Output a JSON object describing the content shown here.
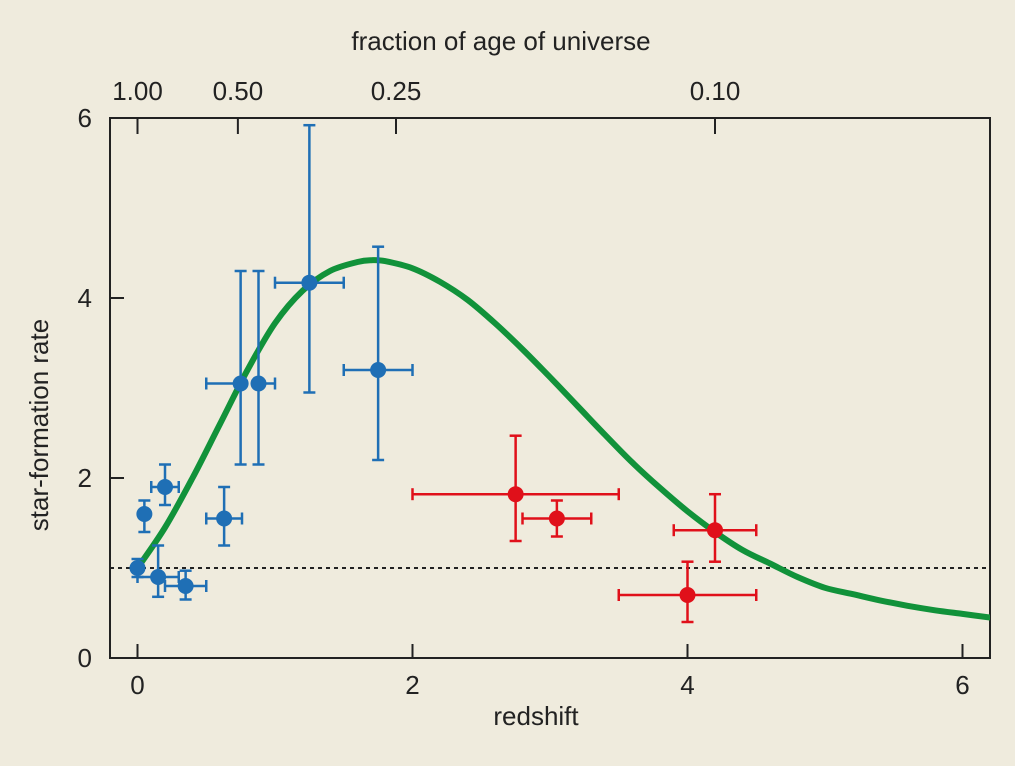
{
  "chart_data": {
    "type": "scatter",
    "xlabel": "redshift",
    "ylabel": "star-formation rate",
    "top_axis_label": "fraction of age of universe",
    "xlim": [
      -0.2,
      6.2
    ],
    "ylim": [
      0,
      6
    ],
    "x_ticks": [
      0,
      2,
      4,
      6
    ],
    "y_ticks": [
      0,
      2,
      4,
      6
    ],
    "top_ticks": [
      {
        "label": "1.00",
        "z": 0.0
      },
      {
        "label": "0.50",
        "z": 0.73
      },
      {
        "label": "0.25",
        "z": 1.88
      },
      {
        "label": "0.10",
        "z": 4.2
      }
    ],
    "reference_line_y": 1.0,
    "colors": {
      "blue": "#1f6fb5",
      "red": "#e0101a",
      "curve": "#11923a",
      "background": "#efebdd"
    },
    "series": [
      {
        "color": "blue",
        "points": [
          {
            "x": 0.0,
            "y": 1.0,
            "xerr": [
              0.0,
              0.0
            ],
            "yerr": [
              0.1,
              0.1
            ]
          },
          {
            "x": 0.05,
            "y": 1.6,
            "xerr": [
              0.0,
              0.0
            ],
            "yerr": [
              0.2,
              0.15
            ]
          },
          {
            "x": 0.15,
            "y": 0.9,
            "xerr": [
              0.15,
              0.15
            ],
            "yerr": [
              0.22,
              0.35
            ]
          },
          {
            "x": 0.2,
            "y": 1.9,
            "xerr": [
              0.1,
              0.1
            ],
            "yerr": [
              0.2,
              0.25
            ]
          },
          {
            "x": 0.35,
            "y": 0.8,
            "xerr": [
              0.15,
              0.15
            ],
            "yerr": [
              0.15,
              0.17
            ]
          },
          {
            "x": 0.63,
            "y": 1.55,
            "xerr": [
              0.13,
              0.13
            ],
            "yerr": [
              0.3,
              0.35
            ]
          },
          {
            "x": 0.75,
            "y": 3.05,
            "xerr": [
              0.25,
              0.0
            ],
            "yerr": [
              0.9,
              1.25
            ]
          },
          {
            "x": 0.88,
            "y": 3.05,
            "xerr": [
              0.0,
              0.12
            ],
            "yerr": [
              0.9,
              1.25
            ]
          },
          {
            "x": 1.25,
            "y": 4.17,
            "xerr": [
              0.25,
              0.25
            ],
            "yerr": [
              1.22,
              1.75
            ]
          },
          {
            "x": 1.75,
            "y": 3.2,
            "xerr": [
              0.25,
              0.25
            ],
            "yerr": [
              1.0,
              1.37
            ]
          }
        ]
      },
      {
        "color": "red",
        "points": [
          {
            "x": 2.75,
            "y": 1.82,
            "xerr": [
              0.75,
              0.75
            ],
            "yerr": [
              0.52,
              0.65
            ]
          },
          {
            "x": 3.05,
            "y": 1.55,
            "xerr": [
              0.25,
              0.25
            ],
            "yerr": [
              0.2,
              0.2
            ]
          },
          {
            "x": 4.0,
            "y": 0.7,
            "xerr": [
              0.5,
              0.5
            ],
            "yerr": [
              0.3,
              0.37
            ]
          },
          {
            "x": 4.2,
            "y": 1.42,
            "xerr": [
              0.3,
              0.3
            ],
            "yerr": [
              0.35,
              0.4
            ]
          }
        ]
      }
    ],
    "curve": {
      "color": "curve",
      "points": [
        [
          0.0,
          1.0
        ],
        [
          0.2,
          1.45
        ],
        [
          0.4,
          2.0
        ],
        [
          0.6,
          2.6
        ],
        [
          0.8,
          3.2
        ],
        [
          1.0,
          3.72
        ],
        [
          1.2,
          4.08
        ],
        [
          1.4,
          4.3
        ],
        [
          1.6,
          4.4
        ],
        [
          1.7,
          4.42
        ],
        [
          1.8,
          4.41
        ],
        [
          2.0,
          4.33
        ],
        [
          2.2,
          4.18
        ],
        [
          2.4,
          3.98
        ],
        [
          2.6,
          3.72
        ],
        [
          2.8,
          3.43
        ],
        [
          3.0,
          3.12
        ],
        [
          3.2,
          2.8
        ],
        [
          3.4,
          2.48
        ],
        [
          3.6,
          2.17
        ],
        [
          3.8,
          1.89
        ],
        [
          4.0,
          1.63
        ],
        [
          4.2,
          1.4
        ],
        [
          4.4,
          1.2
        ],
        [
          4.6,
          1.05
        ],
        [
          4.8,
          0.9
        ],
        [
          5.0,
          0.78
        ],
        [
          5.2,
          0.71
        ],
        [
          5.4,
          0.64
        ],
        [
          5.6,
          0.58
        ],
        [
          5.8,
          0.53
        ],
        [
          6.0,
          0.49
        ],
        [
          6.2,
          0.45
        ]
      ]
    }
  }
}
